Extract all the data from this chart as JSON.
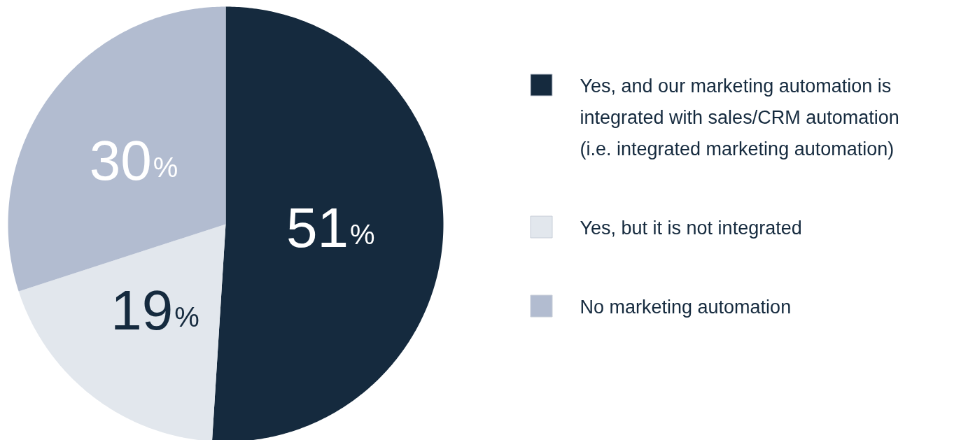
{
  "chart_data": {
    "type": "pie",
    "categories": [
      "Yes, and our marketing automation is integrated with sales/CRM automation (i.e. integrated marketing automation)",
      "Yes, but it is not integrated",
      "No marketing automation"
    ],
    "values": [
      51,
      19,
      30
    ],
    "colors": [
      "#152a3e",
      "#e2e7ed",
      "#b2bcd0"
    ],
    "value_labels": [
      "51%",
      "19%",
      "30%"
    ],
    "legend": "right"
  }
}
